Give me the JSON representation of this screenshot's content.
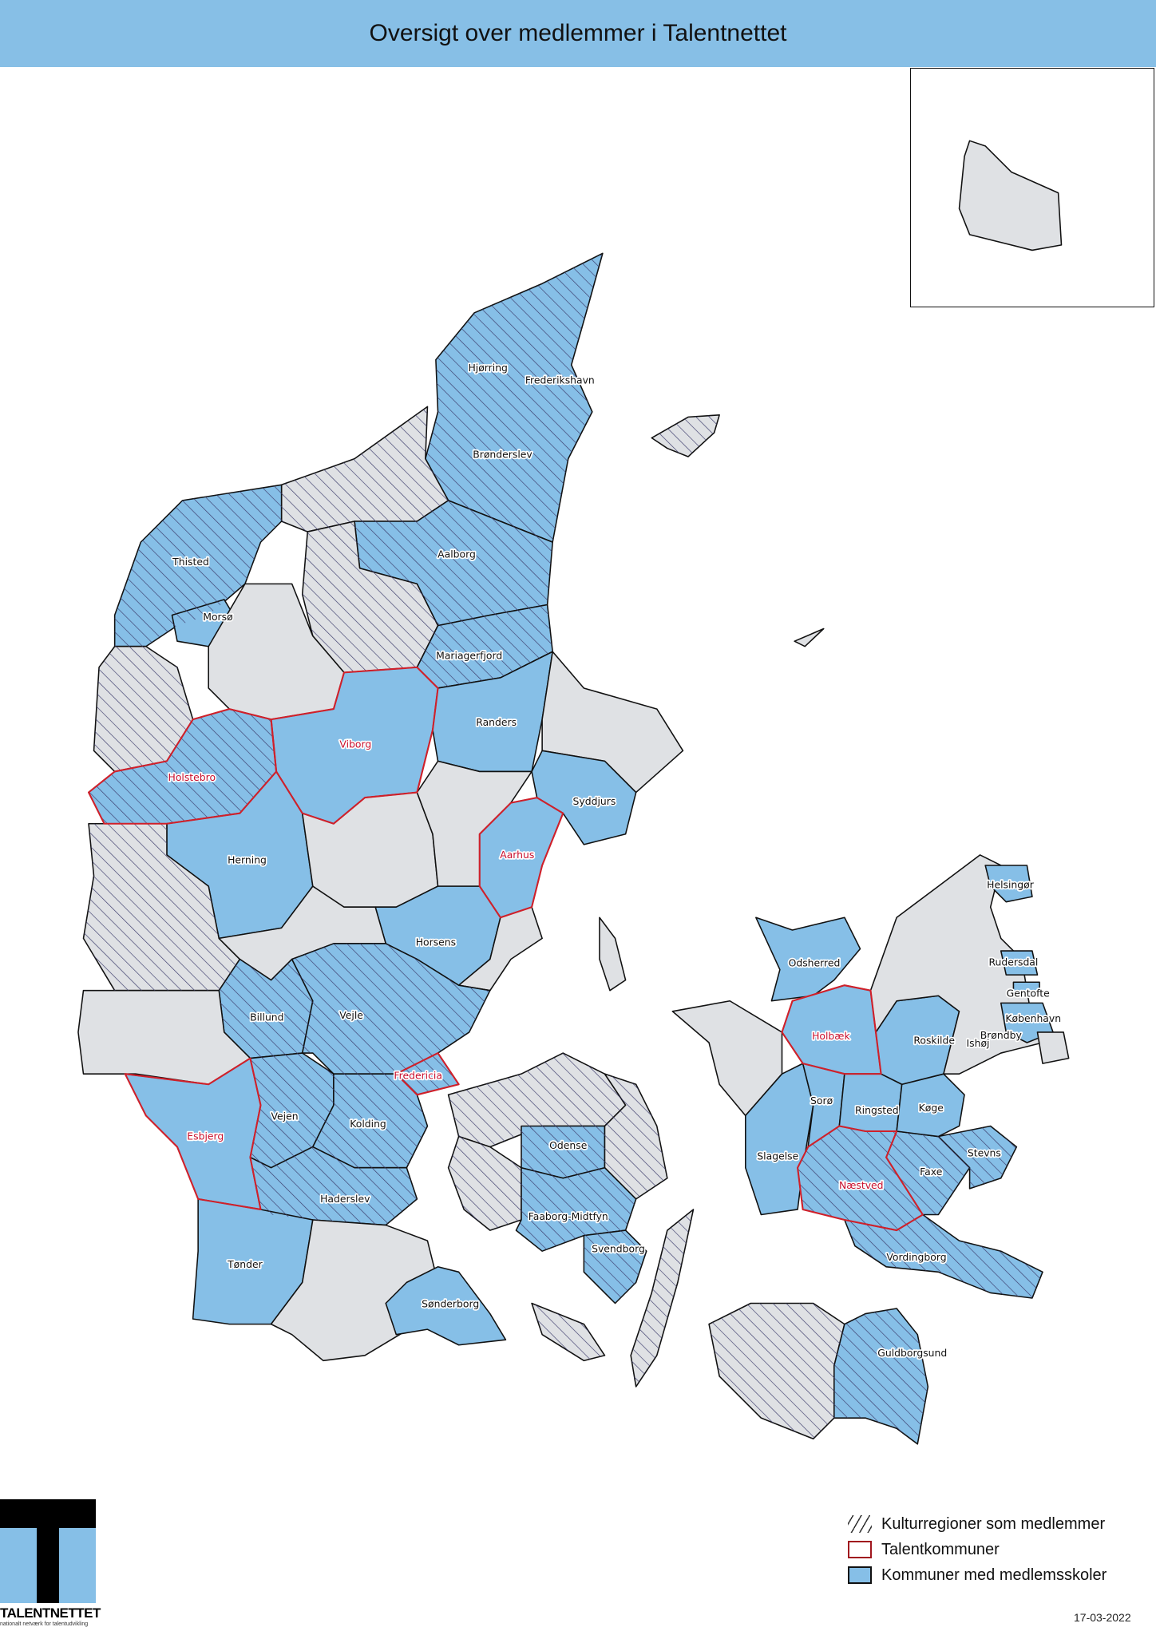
{
  "title": "Oversigt over medlemmer i Talentnettet",
  "colors": {
    "member_fill": "#86bfe7",
    "non_member_fill": "#dfe1e4",
    "talent_outline": "#d0202a",
    "header_bar": "#87bfe6",
    "hatch": "#333333"
  },
  "legend": {
    "kulturregion": "Kulturregioner som medlemmer",
    "talent": "Talentkommuner",
    "member": "Kommuner med medlemsskoler"
  },
  "logo": {
    "name": "TALENTNETTET",
    "subtitle": "nationalt netværk for talentudvikling"
  },
  "date": "17-03-2022",
  "labels": [
    {
      "name": "Hjørring",
      "talent": false,
      "kulturregion": true
    },
    {
      "name": "Frederikshavn",
      "talent": false,
      "kulturregion": true
    },
    {
      "name": "Brønderslev",
      "talent": false,
      "kulturregion": true
    },
    {
      "name": "Thisted",
      "talent": false,
      "kulturregion": true
    },
    {
      "name": "Aalborg",
      "talent": false,
      "kulturregion": true
    },
    {
      "name": "Morsø",
      "talent": false,
      "kulturregion": false
    },
    {
      "name": "Mariagerfjord",
      "talent": false,
      "kulturregion": true
    },
    {
      "name": "Randers",
      "talent": false,
      "kulturregion": false
    },
    {
      "name": "Viborg",
      "talent": true,
      "kulturregion": false
    },
    {
      "name": "Holstebro",
      "talent": true,
      "kulturregion": true
    },
    {
      "name": "Syddjurs",
      "talent": false,
      "kulturregion": false
    },
    {
      "name": "Herning",
      "talent": false,
      "kulturregion": false
    },
    {
      "name": "Aarhus",
      "talent": true,
      "kulturregion": false
    },
    {
      "name": "Horsens",
      "talent": false,
      "kulturregion": false
    },
    {
      "name": "Helsingør",
      "talent": false,
      "kulturregion": false
    },
    {
      "name": "Odsherred",
      "talent": false,
      "kulturregion": false
    },
    {
      "name": "Rudersdal",
      "talent": false,
      "kulturregion": false
    },
    {
      "name": "Gentofte",
      "talent": false,
      "kulturregion": false
    },
    {
      "name": "København",
      "talent": false,
      "kulturregion": false
    },
    {
      "name": "Billund",
      "talent": false,
      "kulturregion": true
    },
    {
      "name": "Vejle",
      "talent": false,
      "kulturregion": true
    },
    {
      "name": "Holbæk",
      "talent": true,
      "kulturregion": false
    },
    {
      "name": "Roskilde",
      "talent": false,
      "kulturregion": false
    },
    {
      "name": "Brøndby",
      "talent": false,
      "kulturregion": false
    },
    {
      "name": "Ishøj",
      "talent": false,
      "kulturregion": false
    },
    {
      "name": "Fredericia",
      "talent": true,
      "kulturregion": true
    },
    {
      "name": "Sorø",
      "talent": false,
      "kulturregion": false
    },
    {
      "name": "Ringsted",
      "talent": false,
      "kulturregion": false
    },
    {
      "name": "Køge",
      "talent": false,
      "kulturregion": false
    },
    {
      "name": "Vejen",
      "talent": false,
      "kulturregion": true
    },
    {
      "name": "Kolding",
      "talent": false,
      "kulturregion": true
    },
    {
      "name": "Esbjerg",
      "talent": true,
      "kulturregion": false
    },
    {
      "name": "Odense",
      "talent": false,
      "kulturregion": true
    },
    {
      "name": "Slagelse",
      "talent": false,
      "kulturregion": false
    },
    {
      "name": "Stevns",
      "talent": false,
      "kulturregion": true
    },
    {
      "name": "Faxe",
      "talent": false,
      "kulturregion": true
    },
    {
      "name": "Næstved",
      "talent": true,
      "kulturregion": true
    },
    {
      "name": "Haderslev",
      "talent": false,
      "kulturregion": true
    },
    {
      "name": "Faaborg-Midtfyn",
      "talent": false,
      "kulturregion": true
    },
    {
      "name": "Svendborg",
      "talent": false,
      "kulturregion": true
    },
    {
      "name": "Vordingborg",
      "talent": false,
      "kulturregion": true
    },
    {
      "name": "Tønder",
      "talent": false,
      "kulturregion": false
    },
    {
      "name": "Sønderborg",
      "talent": false,
      "kulturregion": false
    },
    {
      "name": "Guldborgsund",
      "talent": false,
      "kulturregion": true
    }
  ]
}
